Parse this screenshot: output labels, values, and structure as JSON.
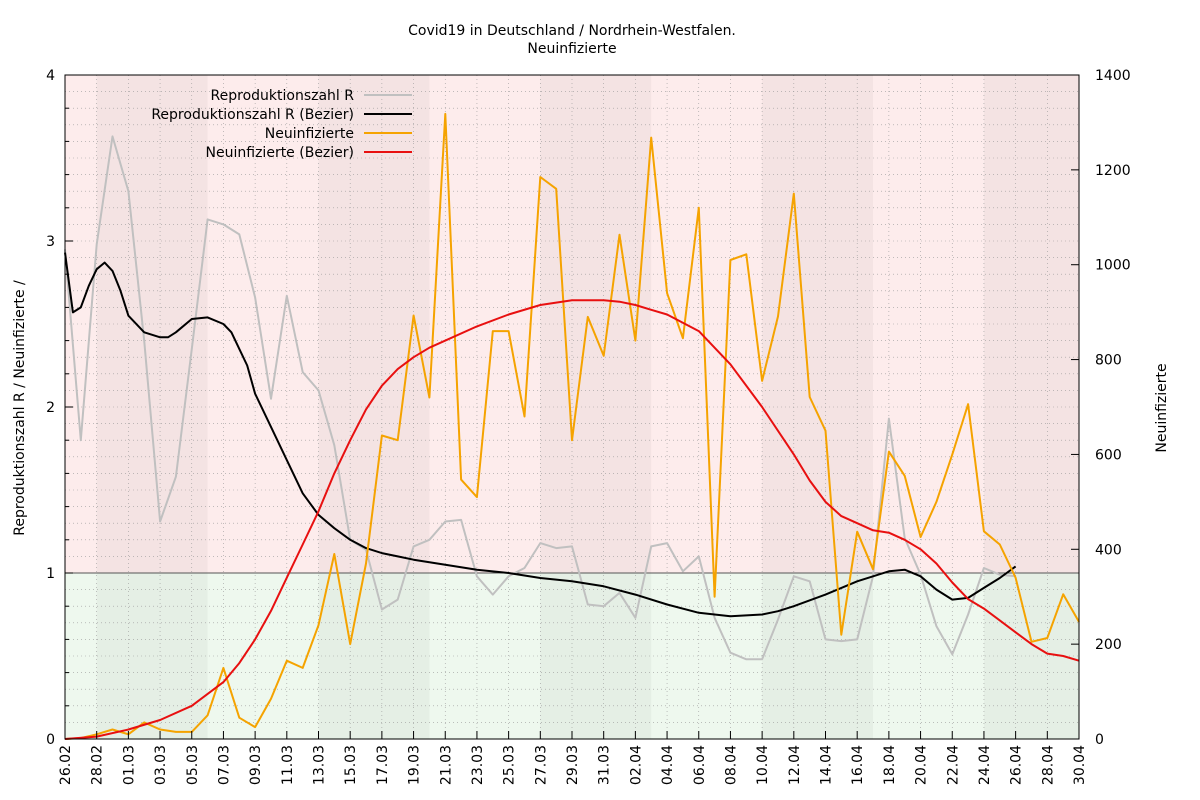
{
  "chart_data": {
    "type": "line",
    "title": "Covid19 in Deutschland / Nordrhein-Westfalen.",
    "subtitle": "Neuinfizierte",
    "ylabel_left": "Reproduktionszahl R / Neuinfizierte /",
    "ylabel_right": "Neuinfizierte",
    "ylim_left": [
      0,
      4
    ],
    "ylim_right": [
      0,
      1400
    ],
    "yticks_left": [
      "0",
      "1",
      "2",
      "3",
      "4"
    ],
    "yticks_right": [
      "0",
      "200",
      "400",
      "600",
      "800",
      "1000",
      "1200",
      "1400"
    ],
    "xlim_days": [
      0,
      64
    ],
    "xtick_labels": [
      "26.02",
      "28.02",
      "01.03",
      "03.03",
      "05.03",
      "07.03",
      "09.03",
      "11.03",
      "13.03",
      "15.03",
      "17.03",
      "19.03",
      "21.03",
      "23.03",
      "25.03",
      "27.03",
      "29.03",
      "31.03",
      "02.04",
      "04.04",
      "06.04",
      "08.04",
      "10.04",
      "12.04",
      "14.04",
      "16.04",
      "18.04",
      "20.04",
      "22.04",
      "24.04",
      "26.04",
      "28.04",
      "30.04"
    ],
    "reference_line_R": 1,
    "background": {
      "above_1": "#fdecec",
      "below_1": "#eef8ee"
    },
    "grid": true,
    "legend_position": "top-left",
    "series": [
      {
        "name": "Reproduktionszahl R",
        "axis": "left",
        "color": "#c0c0c0",
        "x": [
          0,
          1,
          2,
          3,
          4,
          5,
          6,
          7,
          8,
          9,
          10,
          11,
          12,
          13,
          14,
          15,
          16,
          17,
          18,
          19,
          20,
          21,
          22,
          23,
          24,
          25,
          26,
          27,
          28,
          29,
          30,
          31,
          32,
          33,
          34,
          35,
          36,
          37,
          38,
          39,
          40,
          41,
          42,
          43,
          44,
          45,
          46,
          47,
          48,
          49,
          50,
          51,
          52,
          53,
          54,
          55,
          56,
          57,
          58,
          59,
          60
        ],
        "y": [
          2.95,
          1.8,
          2.98,
          3.63,
          3.3,
          2.4,
          1.31,
          1.58,
          2.35,
          3.13,
          3.1,
          3.04,
          2.66,
          2.05,
          2.67,
          2.21,
          2.1,
          1.77,
          1.2,
          1.14,
          0.78,
          0.84,
          1.16,
          1.2,
          1.31,
          1.32,
          0.98,
          0.87,
          0.98,
          1.03,
          1.18,
          1.15,
          1.16,
          0.81,
          0.8,
          0.88,
          0.73,
          1.16,
          1.18,
          1.01,
          1.1,
          0.73,
          0.52,
          0.48,
          0.48,
          0.72,
          0.98,
          0.95,
          0.6,
          0.59,
          0.6,
          0.98,
          1.93,
          1.21,
          0.99,
          0.68,
          0.51,
          0.75,
          1.03,
          0.99,
          0.98
        ]
      },
      {
        "name": "Reproduktionszahl R (Bezier)",
        "axis": "left",
        "color": "#000000",
        "x": [
          0,
          0.5,
          1,
          1.5,
          2,
          2.5,
          3,
          3.5,
          4,
          5,
          6,
          6.5,
          7,
          7.5,
          8,
          9,
          10,
          10.5,
          11,
          11.5,
          12,
          13,
          14,
          15,
          16,
          17,
          18,
          19,
          20,
          21,
          22,
          24,
          26,
          28,
          30,
          32,
          34,
          36,
          38,
          40,
          42,
          44,
          45,
          46,
          48,
          50,
          52,
          53,
          54,
          55,
          56,
          57,
          58,
          59,
          60
        ],
        "y": [
          2.93,
          2.57,
          2.6,
          2.73,
          2.83,
          2.87,
          2.82,
          2.7,
          2.55,
          2.45,
          2.42,
          2.42,
          2.45,
          2.49,
          2.53,
          2.54,
          2.5,
          2.45,
          2.35,
          2.25,
          2.08,
          1.88,
          1.68,
          1.48,
          1.35,
          1.27,
          1.2,
          1.15,
          1.12,
          1.1,
          1.08,
          1.05,
          1.02,
          1.0,
          0.97,
          0.95,
          0.92,
          0.87,
          0.81,
          0.76,
          0.74,
          0.75,
          0.77,
          0.8,
          0.87,
          0.95,
          1.01,
          1.02,
          0.98,
          0.9,
          0.84,
          0.85,
          0.91,
          0.97,
          1.04
        ]
      },
      {
        "name": "Neuinfizierte",
        "axis": "right",
        "color": "#f5a300",
        "x": [
          0,
          1,
          2,
          3,
          4,
          5,
          6,
          7,
          8,
          9,
          10,
          11,
          12,
          13,
          14,
          15,
          16,
          17,
          18,
          19,
          20,
          21,
          22,
          23,
          24,
          25,
          26,
          27,
          28,
          29,
          30,
          31,
          32,
          33,
          34,
          35,
          36,
          37,
          38,
          39,
          40,
          41,
          42,
          43,
          44,
          45,
          46,
          47,
          48,
          49,
          50,
          51,
          52,
          53,
          54,
          55,
          56,
          57,
          58,
          59,
          60,
          61,
          62,
          63,
          64
        ],
        "y": [
          0,
          2,
          10,
          20,
          10,
          35,
          20,
          15,
          15,
          50,
          150,
          45,
          25,
          85,
          165,
          150,
          240,
          390,
          200,
          370,
          640,
          630,
          893,
          720,
          1318,
          547,
          510,
          860,
          860,
          680,
          1185,
          1160,
          630,
          890,
          808,
          1063,
          840,
          1268,
          940,
          845,
          1120,
          300,
          1010,
          1022,
          755,
          891,
          1150,
          721,
          650,
          220,
          437,
          358,
          606,
          555,
          426,
          500,
          600,
          706,
          438,
          410,
          340,
          205,
          213,
          305,
          247
        ]
      },
      {
        "name": "Neuinfizierte (Bezier)",
        "axis": "right",
        "color": "#e81010",
        "x": [
          0,
          2,
          4,
          6,
          8,
          10,
          11,
          12,
          13,
          14,
          15,
          16,
          17,
          18,
          19,
          20,
          21,
          22,
          23,
          24,
          26,
          28,
          30,
          32,
          34,
          35,
          36,
          37,
          38,
          40,
          42,
          44,
          46,
          47,
          48,
          49,
          50,
          51,
          52,
          53,
          54,
          55,
          56,
          57,
          58,
          59,
          60,
          61,
          62,
          63,
          64
        ],
        "y": [
          0,
          5,
          20,
          40,
          70,
          120,
          160,
          210,
          270,
          340,
          410,
          480,
          560,
          630,
          695,
          745,
          780,
          805,
          825,
          840,
          870,
          895,
          915,
          925,
          925,
          922,
          915,
          905,
          895,
          860,
          790,
          700,
          600,
          545,
          500,
          470,
          455,
          440,
          435,
          420,
          400,
          370,
          330,
          295,
          275,
          250,
          225,
          200,
          180,
          175,
          165
        ]
      }
    ]
  }
}
